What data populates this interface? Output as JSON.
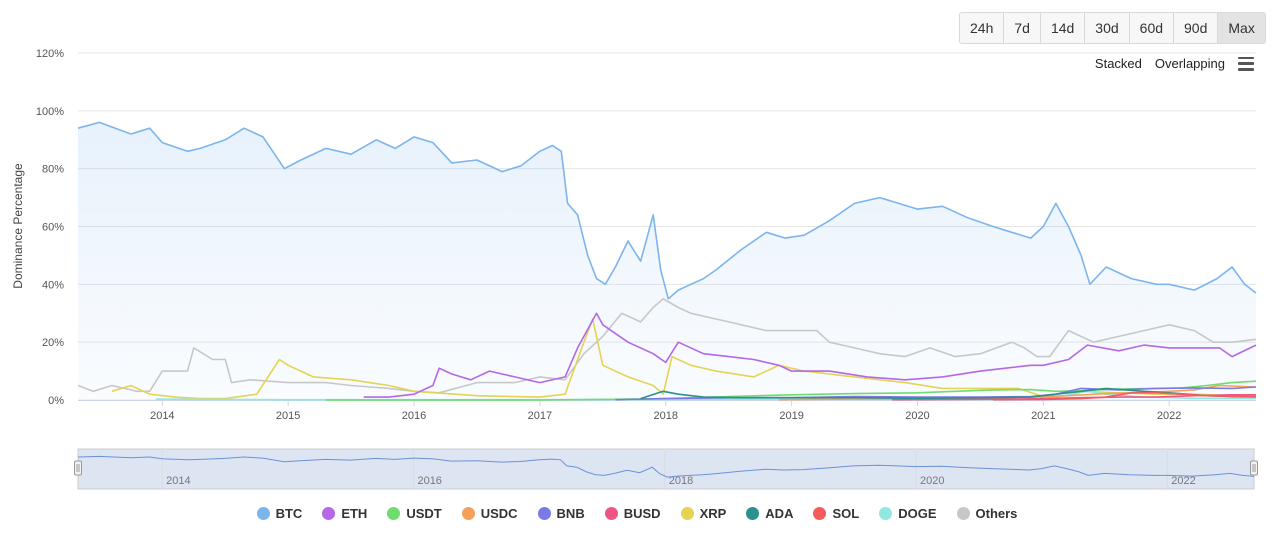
{
  "range_buttons": [
    {
      "label": "24h",
      "active": false
    },
    {
      "label": "7d",
      "active": false
    },
    {
      "label": "14d",
      "active": false
    },
    {
      "label": "30d",
      "active": false
    },
    {
      "label": "60d",
      "active": false
    },
    {
      "label": "90d",
      "active": false
    },
    {
      "label": "Max",
      "active": true
    }
  ],
  "mode_bar": {
    "stacked_label": "Stacked",
    "overlapping_label": "Overlapping",
    "menu_icon": "hamburger-menu-icon"
  },
  "chart_data": {
    "type": "area",
    "ylabel": "Dominance Percentage",
    "ylim": [
      0,
      120
    ],
    "yticks": [
      "0%",
      "20%",
      "40%",
      "60%",
      "80%",
      "100%",
      "120%"
    ],
    "xlim": [
      2013.33,
      2022.69
    ],
    "xticks": [
      "2014",
      "2015",
      "2016",
      "2017",
      "2018",
      "2019",
      "2020",
      "2021",
      "2022"
    ],
    "grid": true,
    "legend_position": "bottom",
    "navigator": {
      "xticks": [
        "2014",
        "2016",
        "2018",
        "2020",
        "2022"
      ]
    },
    "series": [
      {
        "name": "BTC",
        "color": "#7cb5ec",
        "area": true,
        "x": [
          2013.33,
          2013.5,
          2013.75,
          2013.9,
          2014.0,
          2014.2,
          2014.3,
          2014.5,
          2014.65,
          2014.8,
          2014.97,
          2015.1,
          2015.3,
          2015.5,
          2015.7,
          2015.85,
          2016.0,
          2016.15,
          2016.3,
          2016.5,
          2016.7,
          2016.85,
          2017.0,
          2017.1,
          2017.17,
          2017.22,
          2017.3,
          2017.38,
          2017.45,
          2017.52,
          2017.6,
          2017.7,
          2017.8,
          2017.9,
          2017.96,
          2018.02,
          2018.1,
          2018.2,
          2018.3,
          2018.4,
          2018.6,
          2018.8,
          2018.95,
          2019.1,
          2019.3,
          2019.5,
          2019.7,
          2019.85,
          2020.0,
          2020.2,
          2020.4,
          2020.6,
          2020.75,
          2020.9,
          2021.0,
          2021.1,
          2021.2,
          2021.3,
          2021.37,
          2021.5,
          2021.7,
          2021.9,
          2022.0,
          2022.2,
          2022.38,
          2022.5,
          2022.6,
          2022.69
        ],
        "y": [
          94,
          96,
          92,
          94,
          89,
          86,
          87,
          90,
          94,
          91,
          80,
          83,
          87,
          85,
          90,
          87,
          91,
          89,
          82,
          83,
          79,
          81,
          86,
          88,
          86,
          68,
          64,
          50,
          42,
          40,
          46,
          55,
          48,
          64,
          45,
          35,
          38,
          40,
          42,
          45,
          52,
          58,
          56,
          57,
          62,
          68,
          70,
          68,
          66,
          67,
          63,
          60,
          58,
          56,
          60,
          68,
          60,
          50,
          40,
          46,
          42,
          40,
          40,
          38,
          42,
          46,
          40,
          37
        ]
      },
      {
        "name": "ETH",
        "color": "#b467e6",
        "area": false,
        "x": [
          2015.6,
          2015.8,
          2016.0,
          2016.15,
          2016.2,
          2016.3,
          2016.45,
          2016.6,
          2016.8,
          2017.0,
          2017.2,
          2017.3,
          2017.45,
          2017.5,
          2017.7,
          2017.9,
          2018.0,
          2018.1,
          2018.3,
          2018.5,
          2018.7,
          2018.9,
          2019.0,
          2019.3,
          2019.6,
          2019.9,
          2020.2,
          2020.5,
          2020.7,
          2020.9,
          2021.0,
          2021.2,
          2021.35,
          2021.6,
          2021.8,
          2022.0,
          2022.2,
          2022.4,
          2022.5,
          2022.69
        ],
        "y": [
          1,
          1,
          2,
          5,
          11,
          9,
          7,
          10,
          8,
          6,
          8,
          18,
          30,
          26,
          20,
          16,
          13,
          20,
          16,
          15,
          14,
          12,
          10,
          10,
          8,
          7,
          8,
          10,
          11,
          12,
          12,
          14,
          19,
          17,
          19,
          18,
          18,
          18,
          15,
          19
        ]
      },
      {
        "name": "USDT",
        "color": "#6fdc6f",
        "area": false,
        "x": [
          2015.3,
          2016.0,
          2017.0,
          2017.5,
          2018.0,
          2018.5,
          2019.0,
          2019.5,
          2020.0,
          2020.3,
          2020.6,
          2020.9,
          2021.1,
          2021.3,
          2021.6,
          2021.9,
          2022.1,
          2022.3,
          2022.5,
          2022.69
        ],
        "y": [
          0,
          0,
          0,
          0.2,
          0.5,
          1.2,
          1.8,
          2.2,
          2.5,
          3,
          3.5,
          3.6,
          3,
          3.2,
          3.8,
          4,
          4.2,
          5,
          6,
          6.5
        ]
      },
      {
        "name": "USDC",
        "color": "#f5a05a",
        "area": false,
        "x": [
          2018.9,
          2019.5,
          2020.0,
          2020.5,
          2020.9,
          2021.2,
          2021.5,
          2021.9,
          2022.2,
          2022.4,
          2022.69
        ],
        "y": [
          0.1,
          0.3,
          0.4,
          0.6,
          1,
          1.5,
          2.2,
          2.8,
          3.5,
          5,
          4.5
        ]
      },
      {
        "name": "BNB",
        "color": "#7b7be6",
        "area": false,
        "x": [
          2017.6,
          2018.0,
          2018.5,
          2019.0,
          2019.5,
          2020.0,
          2020.5,
          2020.9,
          2021.1,
          2021.3,
          2021.6,
          2021.9,
          2022.2,
          2022.5,
          2022.69
        ],
        "y": [
          0.1,
          0.5,
          0.8,
          0.8,
          1.2,
          1,
          1,
          1.2,
          2,
          4,
          3.5,
          4,
          4.2,
          4,
          4.5
        ]
      },
      {
        "name": "BUSD",
        "color": "#ee5585",
        "area": false,
        "x": [
          2019.8,
          2020.3,
          2020.8,
          2021.0,
          2021.3,
          2021.6,
          2021.9,
          2022.2,
          2022.5,
          2022.69
        ],
        "y": [
          0.1,
          0.2,
          0.3,
          0.5,
          0.8,
          1,
          1,
          1.5,
          1.8,
          1.8
        ]
      },
      {
        "name": "XRP",
        "color": "#e4d354",
        "area": false,
        "x": [
          2013.6,
          2013.75,
          2013.9,
          2014.1,
          2014.3,
          2014.5,
          2014.75,
          2014.93,
          2015.0,
          2015.2,
          2015.5,
          2015.8,
          2016.0,
          2016.5,
          2017.0,
          2017.2,
          2017.35,
          2017.42,
          2017.5,
          2017.7,
          2017.9,
          2017.98,
          2018.05,
          2018.2,
          2018.4,
          2018.7,
          2018.9,
          2019.1,
          2019.5,
          2019.9,
          2020.2,
          2020.5,
          2020.8,
          2020.98,
          2021.1,
          2021.3,
          2021.6,
          2021.9,
          2022.2,
          2022.5,
          2022.69
        ],
        "y": [
          3,
          5,
          2,
          1,
          0.5,
          0.5,
          2,
          14,
          12,
          8,
          7,
          5,
          3,
          1.5,
          1,
          2,
          20,
          28,
          12,
          8,
          5,
          2,
          15,
          12,
          10,
          8,
          12,
          10,
          8,
          6,
          4,
          4,
          4,
          1.5,
          2,
          3,
          2.5,
          2,
          2,
          1.5,
          1.5
        ]
      },
      {
        "name": "ADA",
        "color": "#2b908f",
        "area": false,
        "x": [
          2017.8,
          2017.98,
          2018.1,
          2018.3,
          2018.6,
          2019.0,
          2019.5,
          2020.0,
          2020.5,
          2020.9,
          2021.1,
          2021.3,
          2021.5,
          2021.8,
          2022.0,
          2022.3,
          2022.5,
          2022.69
        ],
        "y": [
          0.5,
          3,
          2,
          1,
          0.8,
          0.8,
          0.8,
          0.6,
          0.8,
          1,
          2,
          3,
          4,
          3,
          2.5,
          1.5,
          1.2,
          1.1
        ]
      },
      {
        "name": "SOL",
        "color": "#f45b5b",
        "area": false,
        "x": [
          2020.6,
          2021.0,
          2021.3,
          2021.5,
          2021.7,
          2021.9,
          2022.1,
          2022.3,
          2022.5,
          2022.69
        ],
        "y": [
          0.1,
          0.2,
          0.5,
          1,
          2.5,
          2.5,
          2,
          1.5,
          1.2,
          1.2
        ]
      },
      {
        "name": "DOGE",
        "color": "#91e8e1",
        "area": false,
        "x": [
          2013.95,
          2014.3,
          2015.0,
          2016.0,
          2017.0,
          2018.0,
          2019.0,
          2020.0,
          2020.9,
          2021.1,
          2021.35,
          2021.5,
          2021.8,
          2022.2,
          2022.69
        ],
        "y": [
          0.3,
          0.2,
          0.1,
          0.1,
          0.1,
          0.2,
          0.3,
          0.2,
          0.2,
          1,
          3,
          2,
          1,
          0.6,
          0.6
        ]
      },
      {
        "name": "Others",
        "color": "#c7c7c7",
        "area": false,
        "x": [
          2013.33,
          2013.45,
          2013.6,
          2013.8,
          2013.9,
          2014.0,
          2014.2,
          2014.25,
          2014.4,
          2014.5,
          2014.55,
          2014.7,
          2015.0,
          2015.3,
          2015.5,
          2015.8,
          2016.0,
          2016.2,
          2016.5,
          2016.8,
          2017.0,
          2017.2,
          2017.35,
          2017.5,
          2017.65,
          2017.8,
          2017.9,
          2017.98,
          2018.1,
          2018.2,
          2018.5,
          2018.8,
          2019.0,
          2019.2,
          2019.3,
          2019.5,
          2019.7,
          2019.9,
          2020.1,
          2020.3,
          2020.5,
          2020.75,
          2020.85,
          2020.95,
          2021.05,
          2021.2,
          2021.4,
          2021.6,
          2021.8,
          2022.0,
          2022.2,
          2022.35,
          2022.5,
          2022.69
        ],
        "y": [
          5,
          3,
          5,
          3,
          3,
          10,
          10,
          18,
          14,
          14,
          6,
          7,
          6,
          6,
          5,
          4,
          3,
          2.5,
          6,
          6,
          8,
          7,
          16,
          22,
          30,
          27,
          32,
          35,
          32,
          30,
          27,
          24,
          24,
          24,
          20,
          18,
          16,
          15,
          18,
          15,
          16,
          20,
          18,
          15,
          15,
          24,
          20,
          22,
          24,
          26,
          24,
          20,
          20,
          21
        ]
      }
    ]
  }
}
